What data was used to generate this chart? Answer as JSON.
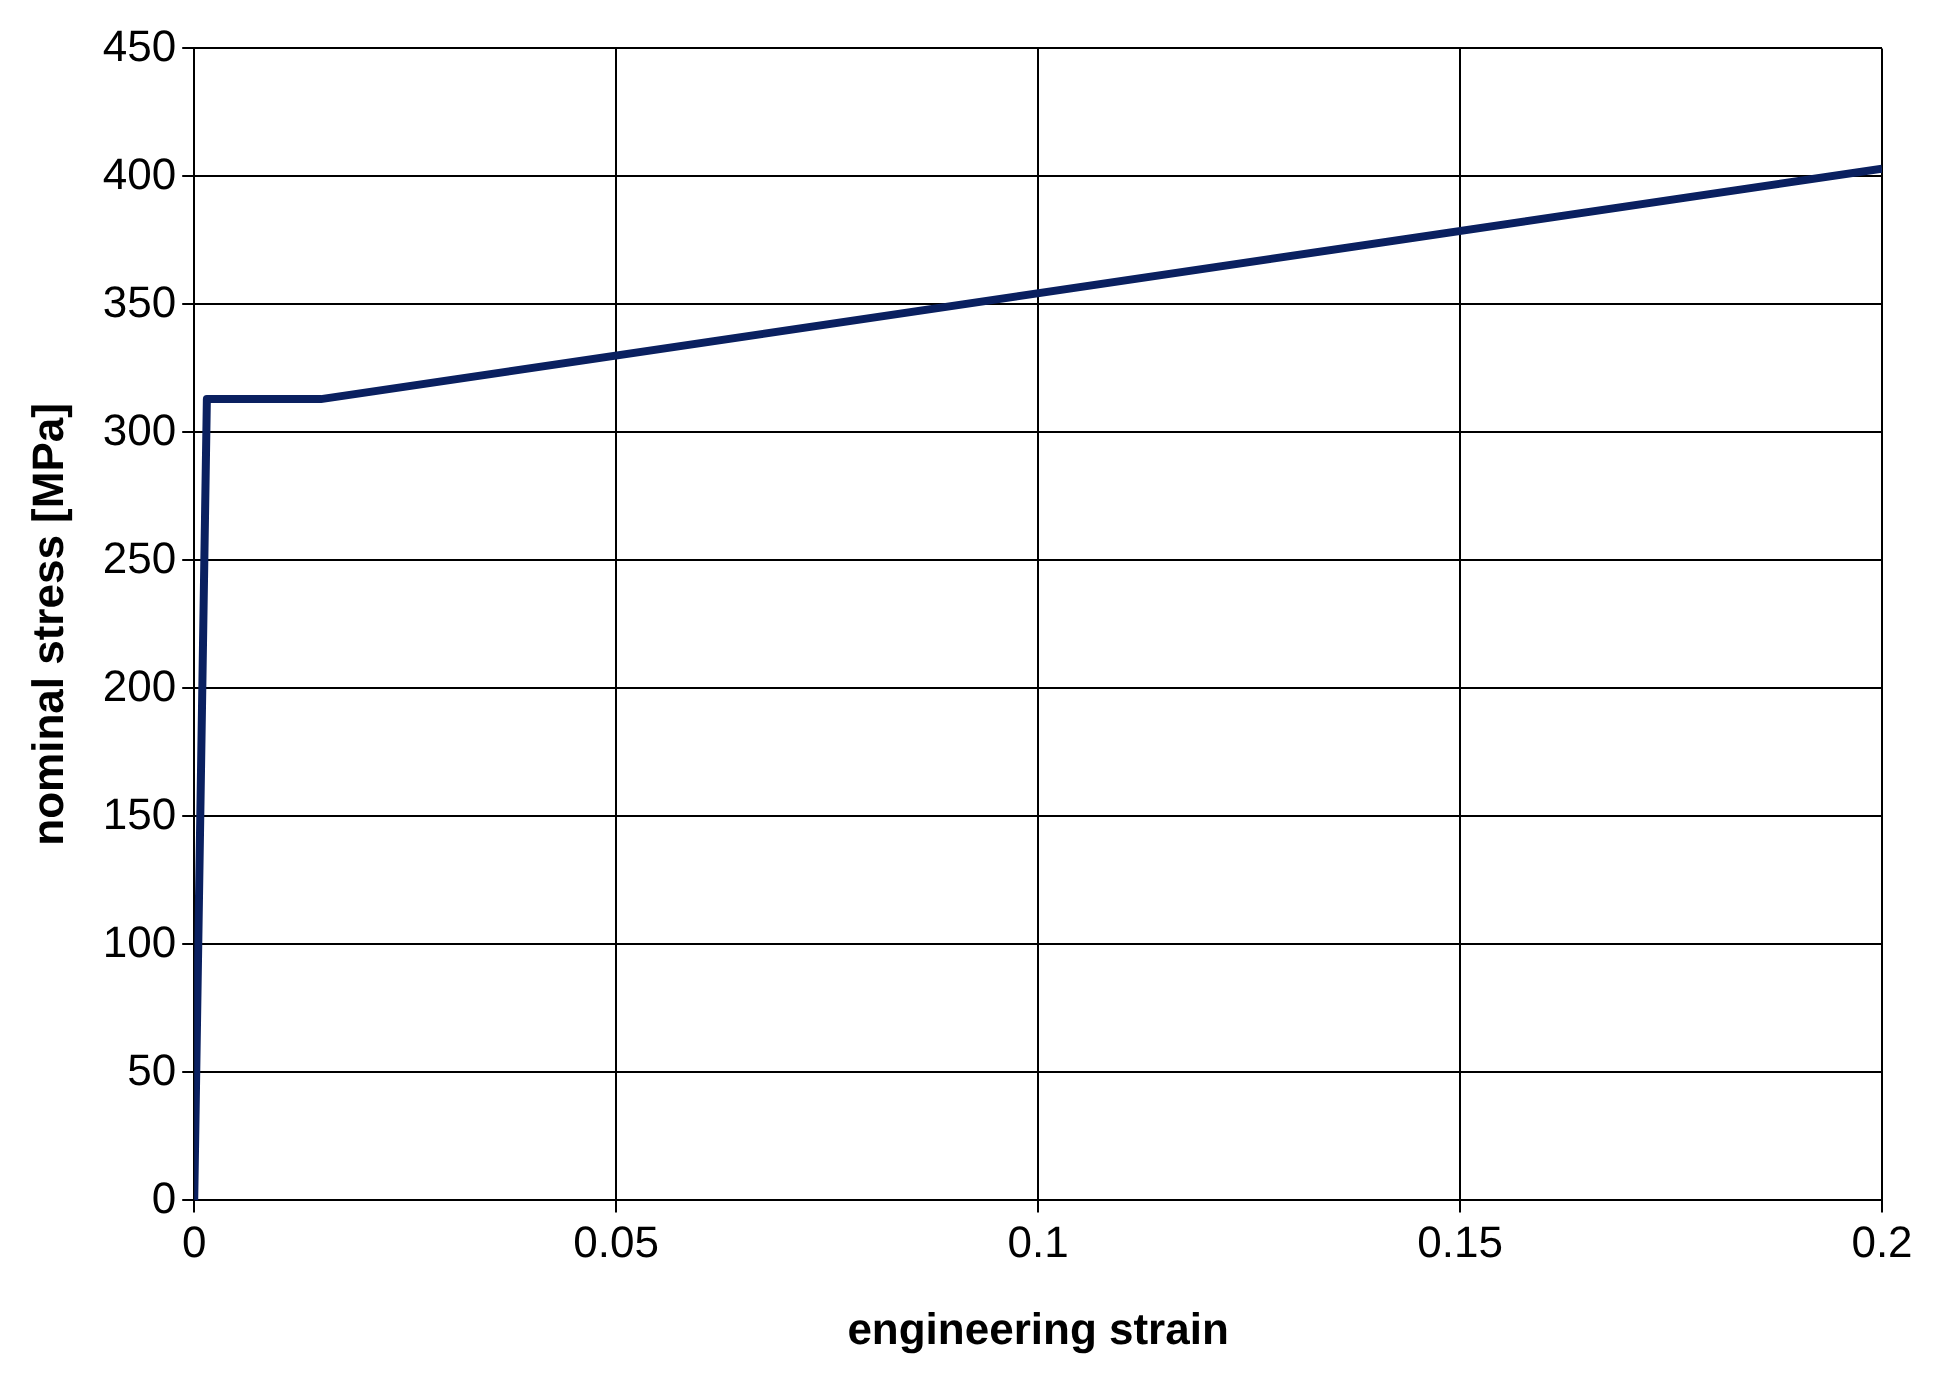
{
  "chart_data": {
    "type": "line",
    "xlabel": "engineering strain",
    "ylabel": "nominal stress [MPa]",
    "x": [
      0,
      0.0015,
      0.015,
      0.2
    ],
    "series": [
      {
        "color": "#0a2060",
        "values": [
          0,
          313,
          313,
          403
        ]
      }
    ],
    "xlim": [
      0,
      0.2
    ],
    "xticks": [
      0,
      0.05,
      0.1,
      0.15,
      0.2
    ],
    "ylim": [
      0,
      450
    ],
    "yticks": [
      0,
      50,
      100,
      150,
      200,
      250,
      300,
      350,
      400,
      450
    ],
    "grid": true,
    "marker": "none",
    "line_style": "solid",
    "legend": false
  }
}
